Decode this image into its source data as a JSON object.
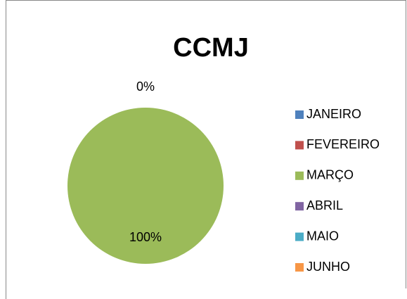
{
  "chart_data": {
    "type": "pie",
    "title": "CCMJ",
    "categories": [
      "JANEIRO",
      "FEVEREIRO",
      "MARÇO",
      "ABRIL",
      "MAIO",
      "JUNHO"
    ],
    "values": [
      0,
      0,
      100,
      0,
      0,
      0
    ],
    "value_labels": [
      "0%",
      null,
      "100%",
      null,
      null,
      null
    ],
    "colors": [
      "#4f81bd",
      "#c0504d",
      "#9bbb59",
      "#8064a2",
      "#4bacc6",
      "#f79646"
    ],
    "legend": "right"
  }
}
